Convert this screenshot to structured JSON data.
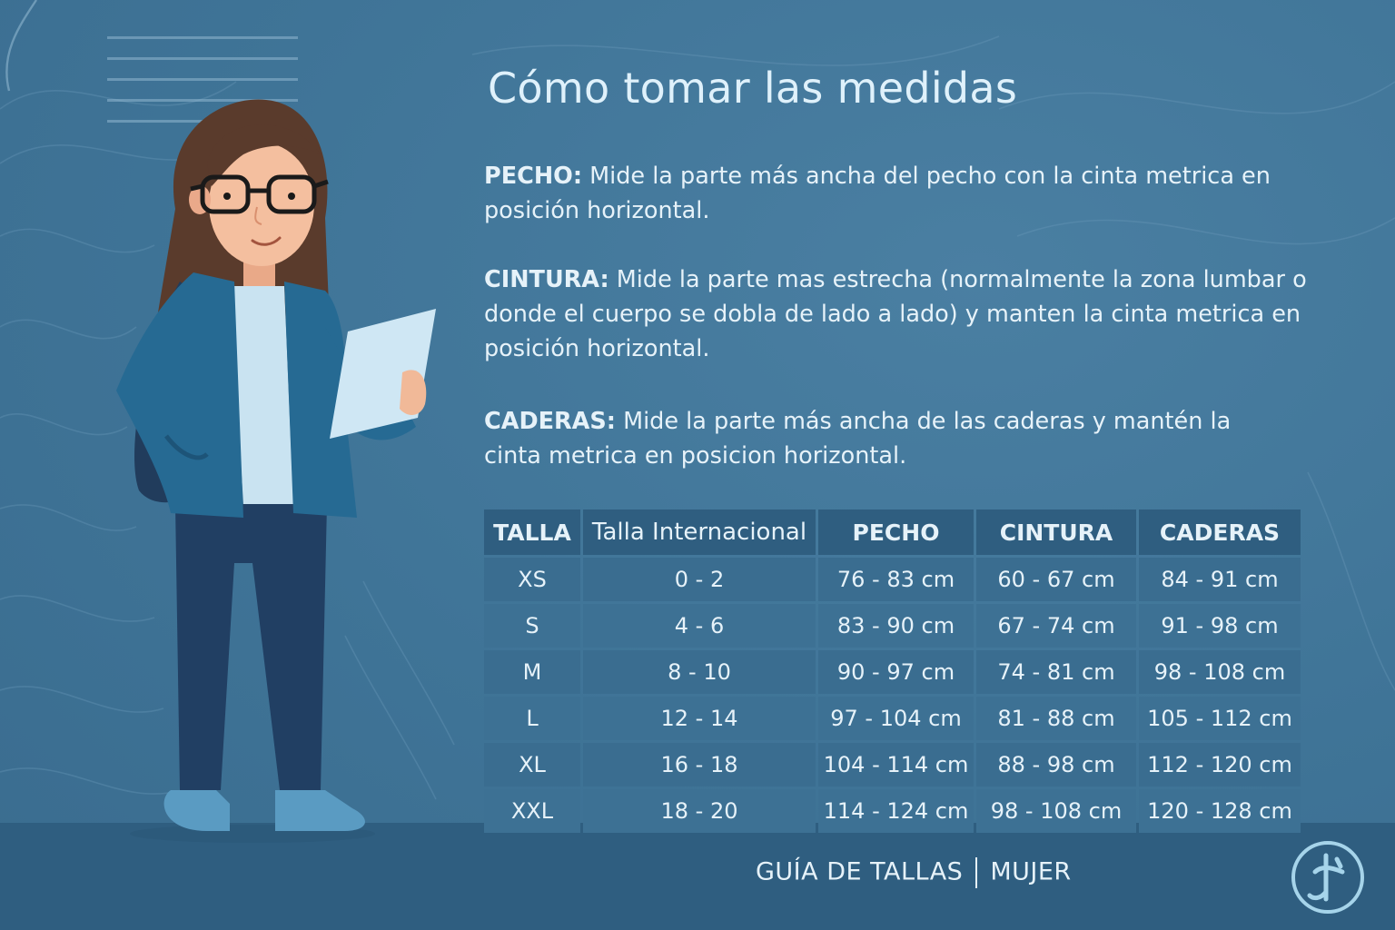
{
  "title": "Cómo tomar las medidas",
  "instructions": {
    "pecho": {
      "label": "PECHO:",
      "text": " Mide la parte más ancha del pecho con la cinta metrica en posición horizontal."
    },
    "cintura": {
      "label": "CINTURA:",
      "text": " Mide la parte mas estrecha (normalmente la zona lumbar o donde el cuerpo se dobla de lado a lado) y manten la cinta metrica en posición horizontal."
    },
    "caderas": {
      "label": "CADERAS:",
      "text": " Mide la parte más ancha de las caderas y mantén la cinta metrica en posicion horizontal."
    }
  },
  "table": {
    "headers": [
      "TALLA",
      "Talla Internacional",
      "PECHO",
      "CINTURA",
      "CADERAS"
    ],
    "rows": [
      [
        "XS",
        "0 - 2",
        "76 - 83 cm",
        "60 - 67 cm",
        "84 - 91 cm"
      ],
      [
        "S",
        "4 - 6",
        "83 - 90 cm",
        "67 - 74 cm",
        "91 - 98 cm"
      ],
      [
        "M",
        "8 - 10",
        "90 - 97 cm",
        "74 - 81 cm",
        "98 - 108 cm"
      ],
      [
        "L",
        "12 - 14",
        "97 - 104 cm",
        "81 - 88 cm",
        "105 - 112 cm"
      ],
      [
        "XL",
        "16 - 18",
        "104 - 114 cm",
        "88 - 98 cm",
        "112 - 120 cm"
      ],
      [
        "XXL",
        "18 - 20",
        "114 - 124 cm",
        "98 - 108 cm",
        "120 - 128 cm"
      ]
    ]
  },
  "footer": {
    "left": "GUÍA DE TALLAS",
    "right": "MUJER"
  },
  "icons": {
    "illustration": "woman-holding-paper-illustration",
    "logo": "brand-logo-icon",
    "ruler": "ruler-lines-decoration"
  },
  "colors": {
    "background": "#3f7396",
    "table_header": "#2f5e80",
    "table_cell": "#3a6d90",
    "text": "#e6f2f9",
    "title": "#dff1fb"
  }
}
